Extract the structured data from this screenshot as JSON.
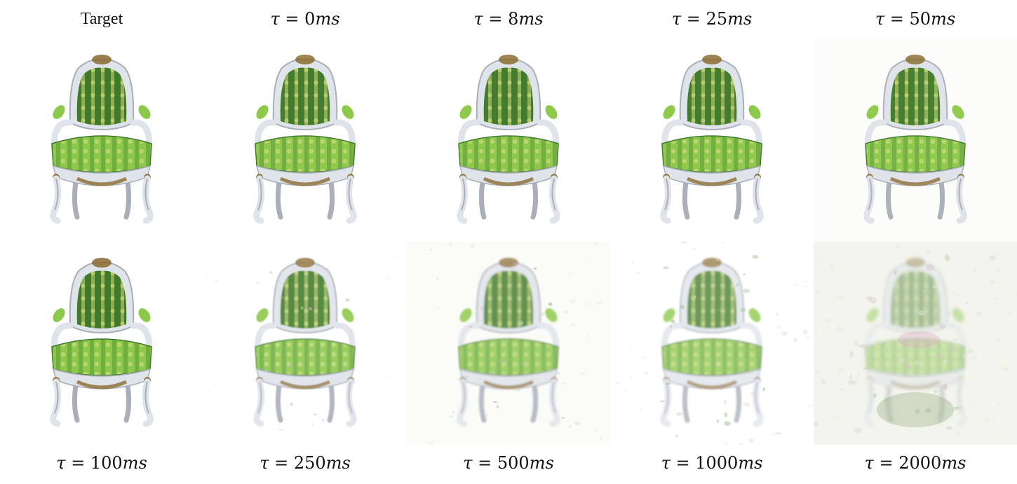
{
  "top_labels": [
    {
      "text": "Target"
    },
    {
      "tau": "τ",
      "eq": "=",
      "num": "0",
      "unit": "ms"
    },
    {
      "tau": "τ",
      "eq": "=",
      "num": "8",
      "unit": "ms"
    },
    {
      "tau": "τ",
      "eq": "=",
      "num": "25",
      "unit": "ms"
    },
    {
      "tau": "τ",
      "eq": "=",
      "num": "50",
      "unit": "ms"
    }
  ],
  "bottom_labels": [
    {
      "tau": "τ",
      "eq": "=",
      "num": "100",
      "unit": "ms"
    },
    {
      "tau": "τ",
      "eq": "=",
      "num": "250",
      "unit": "ms"
    },
    {
      "tau": "τ",
      "eq": "=",
      "num": "500",
      "unit": "ms"
    },
    {
      "tau": "τ",
      "eq": "=",
      "num": "1000",
      "unit": "ms"
    },
    {
      "tau": "τ",
      "eq": "=",
      "num": "2000",
      "unit": "ms"
    }
  ],
  "panels": [
    {
      "degradation": 0.0,
      "background": "#ffffff"
    },
    {
      "degradation": 0.05,
      "background": "#ffffff"
    },
    {
      "degradation": 0.05,
      "background": "#ffffff"
    },
    {
      "degradation": 0.07,
      "background": "#ffffff"
    },
    {
      "degradation": 0.1,
      "background": "#fcfcfa"
    },
    {
      "degradation": 0.0,
      "background": "#ffffff"
    },
    {
      "degradation": 0.35,
      "background": "#ffffff"
    },
    {
      "degradation": 0.55,
      "background": "#fbfbf8"
    },
    {
      "degradation": 0.65,
      "background": "#ffffff"
    },
    {
      "degradation": 0.95,
      "background": "#f4f5ee"
    }
  ],
  "colors": {
    "fabric_dark": "#3f7a2a",
    "fabric_light": "#8cc84a",
    "fabric_pattern": "#c9d97a",
    "frame": "#dfe3ea",
    "frame_shadow": "#a9aeb8",
    "gilt": "#8a6a2e"
  }
}
